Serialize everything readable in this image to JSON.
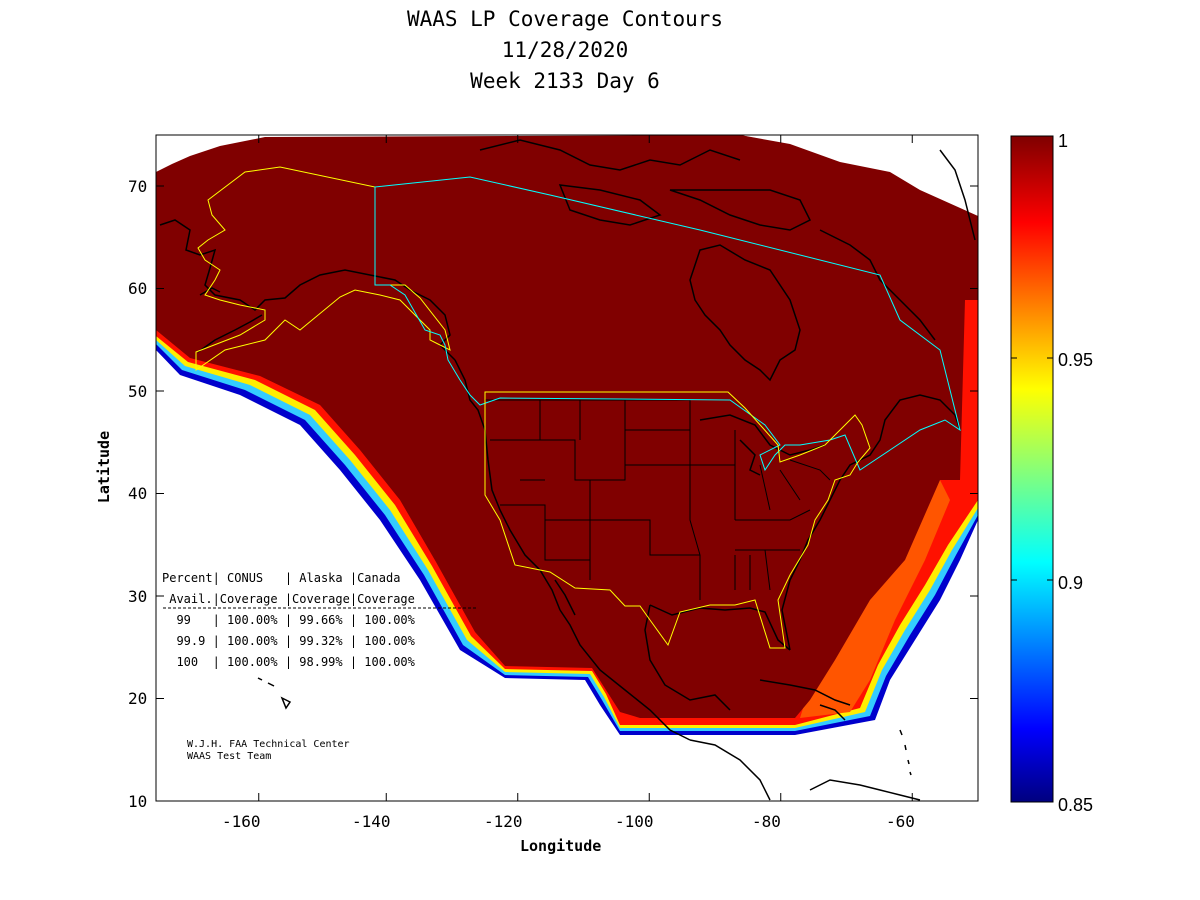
{
  "title": {
    "line1": "WAAS LP Coverage Contours",
    "line2": "11/28/2020",
    "line3": "Week 2133 Day 6"
  },
  "axes": {
    "xlabel": "Longitude",
    "ylabel": "Latitude",
    "xlim": [
      -175,
      -50
    ],
    "ylim": [
      10,
      75
    ],
    "xticks": [
      "-160",
      "-140",
      "-120",
      "-100",
      "-80",
      "-60"
    ],
    "yticks": [
      "10",
      "20",
      "30",
      "40",
      "50",
      "60",
      "70"
    ]
  },
  "colorbar": {
    "range": [
      0.85,
      1
    ],
    "ticks": [
      "1",
      "0.95",
      "0.9",
      "0.85"
    ],
    "colormap": "jet"
  },
  "coverage_table": {
    "header1": "Percent| CONUS   | Alaska |Canada",
    "header2": " Avail.|Coverage |Coverage|Coverage",
    "rows": [
      "  99   | 100.00% | 99.66% | 100.00%",
      "  99.9 | 100.00% | 99.32% | 100.00%",
      "  100  | 100.00% | 98.99% | 100.00%"
    ]
  },
  "credit": {
    "line1": "W.J.H. FAA Technical Center",
    "line2": "WAAS Test Team"
  },
  "colors": {
    "full_coverage": "#800000",
    "service_boundary": "#ffff00",
    "region_boundary": "#00ffff",
    "coastline": "#000000"
  }
}
